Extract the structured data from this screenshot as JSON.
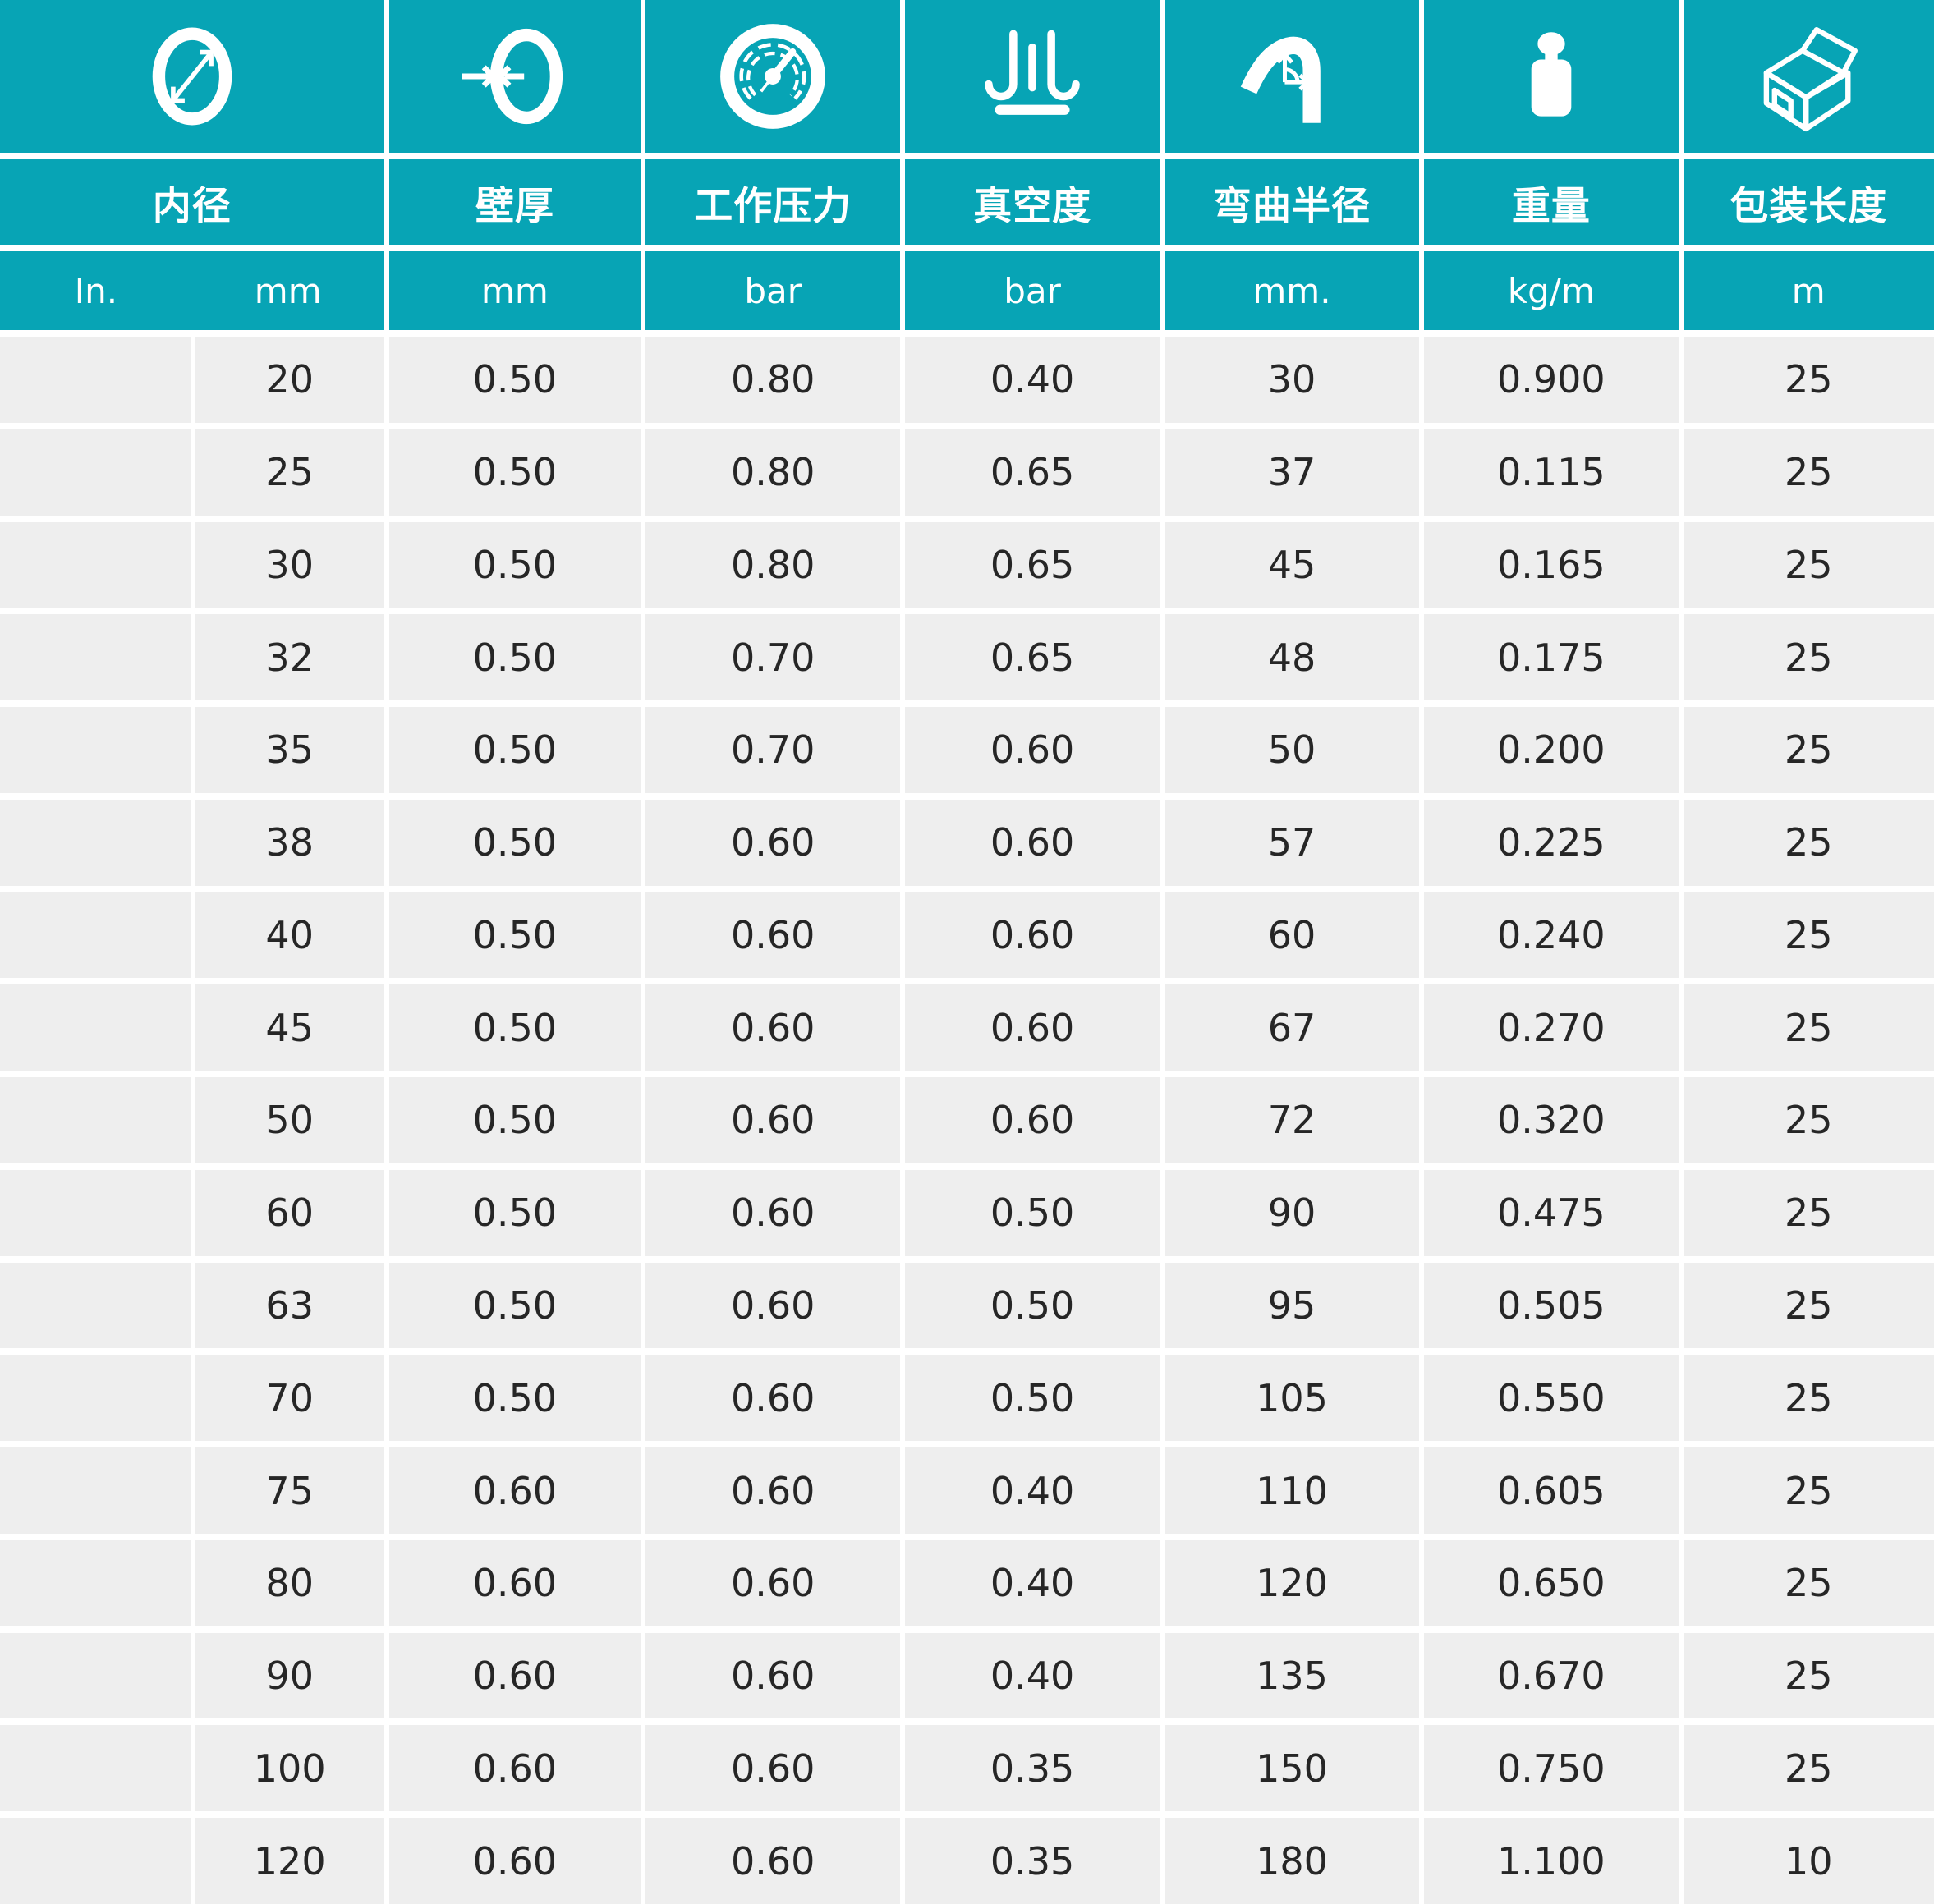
{
  "chart_data": {
    "type": "table",
    "title": "",
    "columns": [
      {
        "icon": "diameter-icon",
        "label": "内径",
        "units": [
          "In.",
          "mm"
        ]
      },
      {
        "icon": "wall-thickness-icon",
        "label": "壁厚",
        "units": [
          "mm"
        ]
      },
      {
        "icon": "pressure-gauge-icon",
        "label": "工作压力",
        "units": [
          "bar"
        ]
      },
      {
        "icon": "vacuum-icon",
        "label": "真空度",
        "units": [
          "bar"
        ]
      },
      {
        "icon": "bend-radius-icon",
        "label": "弯曲半径",
        "units": [
          "mm."
        ]
      },
      {
        "icon": "weight-icon",
        "label": "重量",
        "units": [
          "kg/m"
        ]
      },
      {
        "icon": "package-icon",
        "label": "包装长度",
        "units": [
          "m"
        ]
      }
    ],
    "rows": [
      [
        "",
        "20",
        "0.50",
        "0.80",
        "0.40",
        "30",
        "0.900",
        "25"
      ],
      [
        "",
        "25",
        "0.50",
        "0.80",
        "0.65",
        "37",
        "0.115",
        "25"
      ],
      [
        "",
        "30",
        "0.50",
        "0.80",
        "0.65",
        "45",
        "0.165",
        "25"
      ],
      [
        "",
        "32",
        "0.50",
        "0.70",
        "0.65",
        "48",
        "0.175",
        "25"
      ],
      [
        "",
        "35",
        "0.50",
        "0.70",
        "0.60",
        "50",
        "0.200",
        "25"
      ],
      [
        "",
        "38",
        "0.50",
        "0.60",
        "0.60",
        "57",
        "0.225",
        "25"
      ],
      [
        "",
        "40",
        "0.50",
        "0.60",
        "0.60",
        "60",
        "0.240",
        "25"
      ],
      [
        "",
        "45",
        "0.50",
        "0.60",
        "0.60",
        "67",
        "0.270",
        "25"
      ],
      [
        "",
        "50",
        "0.50",
        "0.60",
        "0.60",
        "72",
        "0.320",
        "25"
      ],
      [
        "",
        "60",
        "0.50",
        "0.60",
        "0.50",
        "90",
        "0.475",
        "25"
      ],
      [
        "",
        "63",
        "0.50",
        "0.60",
        "0.50",
        "95",
        "0.505",
        "25"
      ],
      [
        "",
        "70",
        "0.50",
        "0.60",
        "0.50",
        "105",
        "0.550",
        "25"
      ],
      [
        "",
        "75",
        "0.60",
        "0.60",
        "0.40",
        "110",
        "0.605",
        "25"
      ],
      [
        "",
        "80",
        "0.60",
        "0.60",
        "0.40",
        "120",
        "0.650",
        "25"
      ],
      [
        "",
        "90",
        "0.60",
        "0.60",
        "0.40",
        "135",
        "0.670",
        "25"
      ],
      [
        "",
        "100",
        "0.60",
        "0.60",
        "0.35",
        "150",
        "0.750",
        "25"
      ],
      [
        "",
        "120",
        "0.60",
        "0.60",
        "0.35",
        "180",
        "1.100",
        "10"
      ]
    ],
    "layout": {
      "grid": "on",
      "header_rows": 3,
      "data_rows": 17
    },
    "colors": {
      "accent": "#07a4b5",
      "row_bg": "#eeeeee",
      "gap": "#ffffff",
      "text": "#262626"
    }
  }
}
